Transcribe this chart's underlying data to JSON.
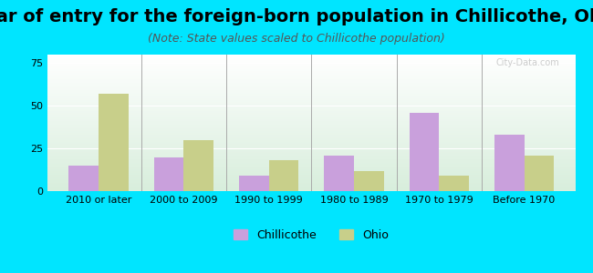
{
  "title": "Year of entry for the foreign-born population in Chillicothe, Ohio",
  "subtitle": "(Note: State values scaled to Chillicothe population)",
  "categories": [
    "2010 or later",
    "2000 to 2009",
    "1990 to 1999",
    "1980 to 1989",
    "1970 to 1979",
    "Before 1970"
  ],
  "chillicothe_values": [
    15,
    20,
    9,
    21,
    46,
    33
  ],
  "ohio_values": [
    57,
    30,
    18,
    12,
    9,
    21
  ],
  "chillicothe_color": "#c9a0dc",
  "ohio_color": "#c8cf8a",
  "background_color": "#00e5ff",
  "ylim": [
    0,
    80
  ],
  "yticks": [
    0,
    25,
    50,
    75
  ],
  "bar_width": 0.35,
  "legend_labels": [
    "Chillicothe",
    "Ohio"
  ],
  "watermark": "City-Data.com",
  "title_fontsize": 14,
  "subtitle_fontsize": 9,
  "tick_fontsize": 8
}
